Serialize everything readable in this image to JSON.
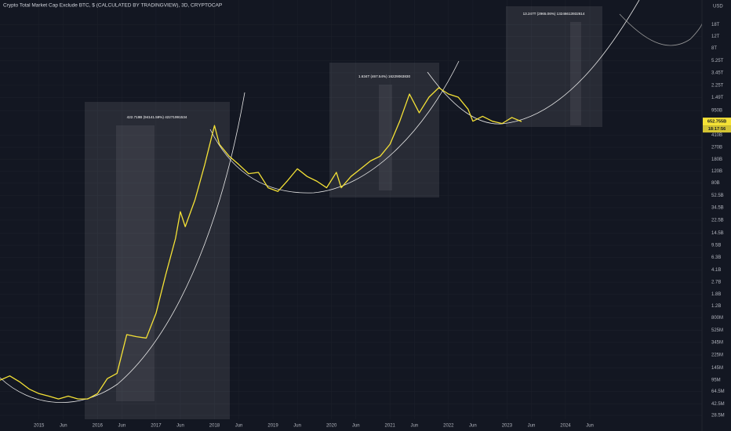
{
  "chart_data": {
    "type": "line",
    "title": "Crypto Total Market Cap Exclude BTC, $ (CALCULATED BY TRADINGVIEW), 3D, CRYPTOCAP",
    "y_unit": "USD",
    "log_scale": true,
    "grid": true,
    "x": [
      "2014-05",
      "2014-07",
      "2014-09",
      "2014-11",
      "2015-01",
      "2015-03",
      "2015-05",
      "2015-07",
      "2015-09",
      "2015-11",
      "2016-01",
      "2016-03",
      "2016-05",
      "2016-07",
      "2016-09",
      "2016-11",
      "2017-01",
      "2017-03",
      "2017-05",
      "2017-06",
      "2017-07",
      "2017-09",
      "2017-11",
      "2018-01",
      "2018-02",
      "2018-04",
      "2018-06",
      "2018-08",
      "2018-10",
      "2018-12",
      "2019-02",
      "2019-04",
      "2019-06",
      "2019-08",
      "2019-10",
      "2019-12",
      "2020-02",
      "2020-03",
      "2020-05",
      "2020-07",
      "2020-09",
      "2020-11",
      "2021-01",
      "2021-03",
      "2021-05",
      "2021-07",
      "2021-09",
      "2021-11",
      "2022-01",
      "2022-03",
      "2022-05",
      "2022-06",
      "2022-08",
      "2022-10",
      "2022-12",
      "2023-02",
      "2023-04"
    ],
    "series": [
      {
        "color": "#f5e236",
        "values": [
          95000000.0,
          110000000.0,
          90000000.0,
          70000000.0,
          60000000.0,
          55000000.0,
          50000000.0,
          55000000.0,
          50000000.0,
          50000000.0,
          60000000.0,
          100000000.0,
          120000000.0,
          450000000.0,
          420000000.0,
          400000000.0,
          930000000.0,
          3500000000.0,
          12000000000.0,
          30000000000.0,
          18000000000.0,
          45000000000.0,
          150000000000.0,
          570000000000.0,
          300000000000.0,
          200000000000.0,
          150000000000.0,
          110000000000.0,
          115000000000.0,
          68000000000.0,
          60000000000.0,
          87000000000.0,
          130000000000.0,
          100000000000.0,
          85000000000.0,
          68000000000.0,
          115000000000.0,
          68000000000.0,
          100000000000.0,
          130000000000.0,
          170000000000.0,
          200000000000.0,
          300000000000.0,
          660000000000.0,
          1670000000000.0,
          880000000000.0,
          1500000000000.0,
          2070000000000.0,
          1670000000000.0,
          1500000000000.0,
          1000000000000.0,
          660000000000.0,
          780000000000.0,
          660000000000.0,
          610000000000.0,
          750000000000.0,
          652755000000
        ]
      }
    ],
    "xlim": [
      "2014-05",
      "2026-05"
    ],
    "xticks": [
      {
        "value": "2015-01",
        "label": "2015"
      },
      {
        "value": "2015-06",
        "label": "Jun"
      },
      {
        "value": "2016-01",
        "label": "2016"
      },
      {
        "value": "2016-06",
        "label": "Jun"
      },
      {
        "value": "2017-01",
        "label": "2017"
      },
      {
        "value": "2017-06",
        "label": "Jun"
      },
      {
        "value": "2018-01",
        "label": "2018"
      },
      {
        "value": "2018-06",
        "label": "Jun"
      },
      {
        "value": "2019-01",
        "label": "2019"
      },
      {
        "value": "2019-06",
        "label": "Jun"
      },
      {
        "value": "2020-01",
        "label": "2020"
      },
      {
        "value": "2020-06",
        "label": "Jun"
      },
      {
        "value": "2021-01",
        "label": "2021"
      },
      {
        "value": "2021-06",
        "label": "Jun"
      },
      {
        "value": "2022-01",
        "label": "2022"
      },
      {
        "value": "2022-06",
        "label": "Jun"
      },
      {
        "value": "2023-01",
        "label": "2023"
      },
      {
        "value": "2023-06",
        "label": "Jun"
      },
      {
        "value": "2024-01",
        "label": "2024"
      },
      {
        "value": "2024-06",
        "label": "Jun"
      }
    ],
    "ylim": [
      25000000,
      41500000000000
    ],
    "yticks": [
      {
        "value": 18000000000000.0,
        "label": "18T"
      },
      {
        "value": 12000000000000.0,
        "label": "12T"
      },
      {
        "value": 8000000000000.0,
        "label": "8T"
      },
      {
        "value": 5250000000000.0,
        "label": "5.25T"
      },
      {
        "value": 3450000000000.0,
        "label": "3.45T"
      },
      {
        "value": 2250000000000.0,
        "label": "2.25T"
      },
      {
        "value": 1490000000000.0,
        "label": "1.49T"
      },
      {
        "value": 950000000000.0,
        "label": "950B"
      },
      {
        "value": 410000000000.0,
        "label": "410B"
      },
      {
        "value": 270000000000.0,
        "label": "270B"
      },
      {
        "value": 180000000000.0,
        "label": "180B"
      },
      {
        "value": 120000000000.0,
        "label": "120B"
      },
      {
        "value": 80000000000.0,
        "label": "80B"
      },
      {
        "value": 52500000000.0,
        "label": "52.5B"
      },
      {
        "value": 34500000000.0,
        "label": "34.5B"
      },
      {
        "value": 22500000000.0,
        "label": "22.5B"
      },
      {
        "value": 14500000000.0,
        "label": "14.5B"
      },
      {
        "value": 9500000000.0,
        "label": "9.5B"
      },
      {
        "value": 6300000000.0,
        "label": "6.3B"
      },
      {
        "value": 4100000000.0,
        "label": "4.1B"
      },
      {
        "value": 2700000000.0,
        "label": "2.7B"
      },
      {
        "value": 1800000000.0,
        "label": "1.8B"
      },
      {
        "value": 1200000000.0,
        "label": "1.2B"
      },
      {
        "value": 800000000.0,
        "label": "800M"
      },
      {
        "value": 525000000.0,
        "label": "525M"
      },
      {
        "value": 345000000.0,
        "label": "345M"
      },
      {
        "value": 225000000.0,
        "label": "225M"
      },
      {
        "value": 145000000.0,
        "label": "145M"
      },
      {
        "value": 95000000.0,
        "label": "95M"
      },
      {
        "value": 64500000.0,
        "label": "64.5M"
      },
      {
        "value": 42500000.0,
        "label": "42.5M"
      },
      {
        "value": 28500000.0,
        "label": "28.5M"
      }
    ],
    "price_label": {
      "value": 652755000000,
      "label": "652.755B"
    },
    "countdown": "18:17:56",
    "annotations": [
      "422.719B (94141.59%) 42271991534",
      "1.634T (467.54%) 16229063830",
      "13.247T (2965.06%) 13246613932614"
    ]
  }
}
